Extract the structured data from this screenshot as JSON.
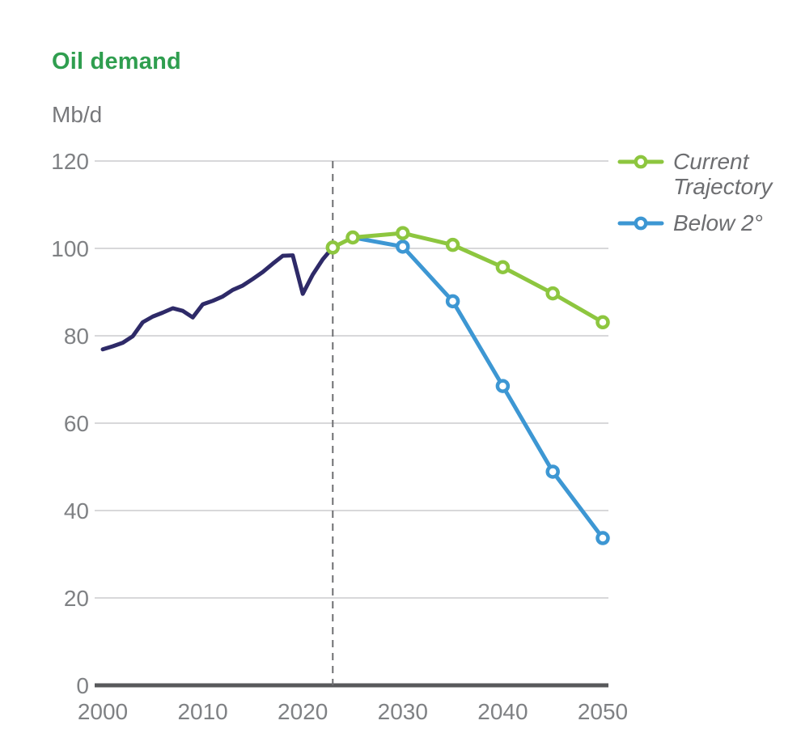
{
  "header": {
    "title": "Oil demand",
    "unit": "Mb/d"
  },
  "colors": {
    "title_green": "#2f9e4f",
    "historical_navy": "#2e2a68",
    "trajectory_green": "#8dc63f",
    "below2_blue": "#3d97d3",
    "axis_text_gray": "#7f8184",
    "unit_gray": "#77787b",
    "legend_text_gray": "#6d6e71",
    "gridline_gray": "#cbcccd",
    "baseline_gray": "#58595b",
    "divider_gray": "#6d6e71",
    "marker_fill": "#ffffff"
  },
  "chart_data": {
    "type": "line",
    "title": "Oil demand",
    "xlabel": "",
    "ylabel": "Mb/d",
    "xlim": [
      2000,
      2050
    ],
    "ylim": [
      0,
      120
    ],
    "xticks": [
      2000,
      2010,
      2020,
      2030,
      2040,
      2050
    ],
    "yticks": [
      0,
      20,
      40,
      60,
      80,
      100,
      120
    ],
    "grid": true,
    "legend_position": "top-right",
    "divider_year": 2023,
    "series": [
      {
        "id": "historical",
        "color": "#2e2a68",
        "markers": false,
        "x": [
          2000,
          2001,
          2002,
          2003,
          2004,
          2005,
          2006,
          2007,
          2008,
          2009,
          2010,
          2011,
          2012,
          2013,
          2014,
          2015,
          2016,
          2017,
          2018,
          2019,
          2020,
          2021,
          2022,
          2023
        ],
        "values": [
          76.9,
          77.6,
          78.4,
          79.9,
          83.1,
          84.4,
          85.3,
          86.3,
          85.7,
          84.2,
          87.2,
          88.0,
          89.0,
          90.5,
          91.5,
          93.0,
          94.6,
          96.5,
          98.3,
          98.4,
          89.6,
          94.0,
          97.5,
          100.2
        ]
      },
      {
        "id": "current-trajectory",
        "name": "Current Trajectory",
        "color": "#8dc63f",
        "markers": true,
        "markers_from": 0,
        "x": [
          2023,
          2025,
          2030,
          2035,
          2040,
          2045,
          2050
        ],
        "values": [
          100.2,
          102.5,
          103.5,
          100.8,
          95.7,
          89.7,
          83.1
        ]
      },
      {
        "id": "below-2",
        "name": "Below 2°",
        "color": "#3d97d3",
        "markers": true,
        "markers_from": 1,
        "x": [
          2025,
          2030,
          2035,
          2040,
          2045,
          2050
        ],
        "values": [
          102.5,
          100.4,
          87.9,
          68.5,
          48.9,
          33.7
        ]
      }
    ]
  }
}
